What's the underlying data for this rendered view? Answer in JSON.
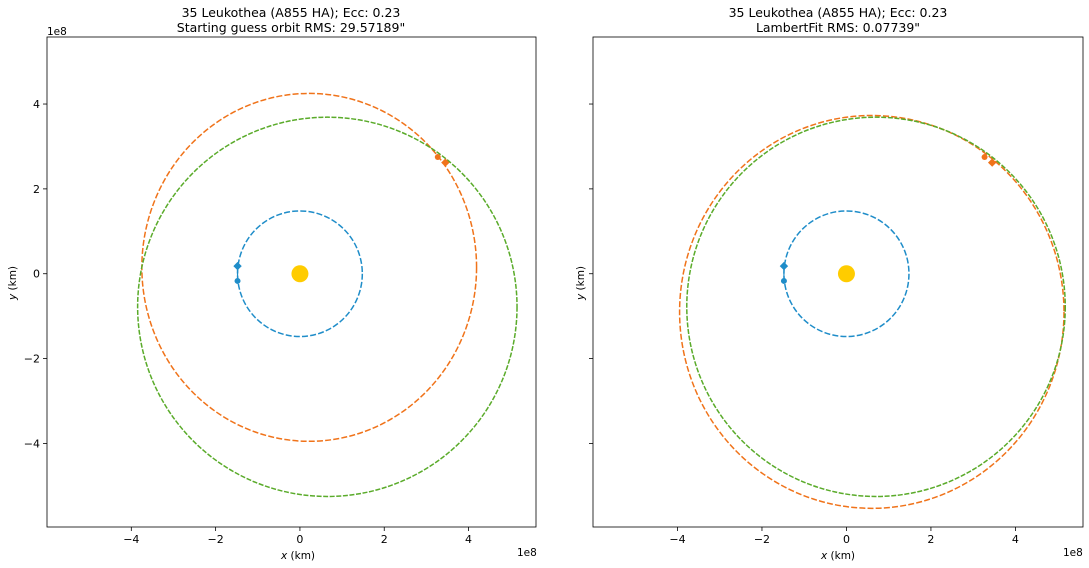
{
  "colors": {
    "earth": "#1f8dc9",
    "guess": "#f0731a",
    "truth": "#5aab2a",
    "sun": "#ffcc00"
  },
  "chart_data": [
    {
      "type": "line",
      "title": "35 Leukothea (A855 HA); Ecc: 0.23",
      "subtitle": "Starting guess orbit RMS: 29.57189\"",
      "xlabel": "x (km)",
      "ylabel": "y (km)",
      "xlabel_var": "x",
      "ylabel_var": "y",
      "xlabel_unit": " (km)",
      "ylabel_unit": " (km)",
      "x_exponent": "1e8",
      "y_exponent": "1e8",
      "xlim": [
        -6.0,
        5.6
      ],
      "ylim": [
        -5.97,
        5.58
      ],
      "xticks": [
        -4,
        -2,
        0,
        2,
        4
      ],
      "yticks": [
        -4,
        -2,
        0,
        2,
        4
      ],
      "show_ytick_labels": true,
      "grid": false,
      "sun": {
        "x": 0.0,
        "y": 0.0
      },
      "series": [
        {
          "key": "earth",
          "ellipse": {
            "cx": 0.0,
            "cy": 0.0,
            "rx": 1.48,
            "ry": 1.48
          }
        },
        {
          "key": "guess",
          "ellipse": {
            "cx": 0.22,
            "cy": 0.15,
            "rx": 3.97,
            "ry": 4.1
          }
        },
        {
          "key": "truth",
          "ellipse": {
            "cx": 0.65,
            "cy": -0.78,
            "rx": 4.5,
            "ry": 4.47
          }
        }
      ],
      "markers": [
        {
          "key": "earth",
          "shape": "diamond",
          "x": -1.48,
          "y": 0.18
        },
        {
          "key": "earth",
          "shape": "circle",
          "x": -1.48,
          "y": -0.17
        },
        {
          "key": "guess",
          "shape": "circle",
          "x": 3.27,
          "y": 2.75
        },
        {
          "key": "guess",
          "shape": "diamond",
          "x": 3.45,
          "y": 2.62
        }
      ]
    },
    {
      "type": "line",
      "title": "35 Leukothea (A855 HA); Ecc: 0.23",
      "subtitle": "LambertFit RMS: 0.07739\"",
      "xlabel": "x (km)",
      "ylabel": "y (km)",
      "xlabel_var": "x",
      "ylabel_var": "y",
      "xlabel_unit": " (km)",
      "ylabel_unit": " (km)",
      "x_exponent": "1e8",
      "y_exponent": "",
      "xlim": [
        -6.0,
        5.6
      ],
      "ylim": [
        -5.97,
        5.58
      ],
      "xticks": [
        -4,
        -2,
        0,
        2,
        4
      ],
      "yticks": [
        -4,
        -2,
        0,
        2,
        4
      ],
      "show_ytick_labels": false,
      "grid": false,
      "sun": {
        "x": 0.0,
        "y": 0.0
      },
      "series": [
        {
          "key": "earth",
          "ellipse": {
            "cx": 0.0,
            "cy": 0.0,
            "rx": 1.48,
            "ry": 1.48
          }
        },
        {
          "key": "guess",
          "ellipse": {
            "cx": 0.6,
            "cy": -0.9,
            "rx": 4.55,
            "ry": 4.63
          }
        },
        {
          "key": "truth",
          "ellipse": {
            "cx": 0.7,
            "cy": -0.78,
            "rx": 4.48,
            "ry": 4.47
          }
        }
      ],
      "markers": [
        {
          "key": "earth",
          "shape": "diamond",
          "x": -1.48,
          "y": 0.18
        },
        {
          "key": "earth",
          "shape": "circle",
          "x": -1.48,
          "y": -0.17
        },
        {
          "key": "guess",
          "shape": "circle",
          "x": 3.27,
          "y": 2.75
        },
        {
          "key": "guess",
          "shape": "diamond",
          "x": 3.45,
          "y": 2.62
        }
      ]
    }
  ]
}
